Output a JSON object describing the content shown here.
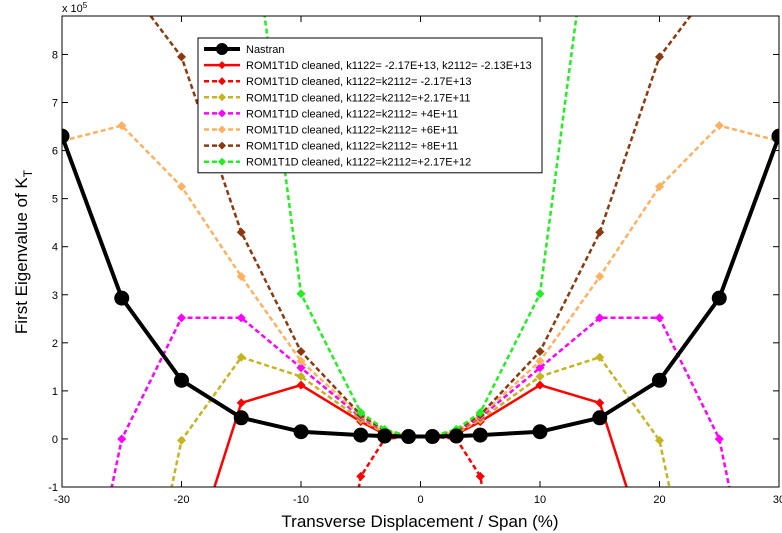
{
  "chart_data": {
    "type": "line",
    "title": "",
    "xlabel": "Transverse Displacement / Span (%)",
    "ylabel_main": "First Eigenvalue of K",
    "ylabel_sub": "T",
    "y_multiplier_base": "x 10",
    "y_multiplier_exp": "5",
    "xlim": [
      -30,
      30
    ],
    "ylim": [
      -1,
      8.8
    ],
    "xticks": [
      -30,
      -20,
      -10,
      0,
      10,
      20,
      30
    ],
    "yticks": [
      -1,
      0,
      1,
      2,
      3,
      4,
      5,
      6,
      7,
      8
    ],
    "legend_position": "top-center",
    "grid": false,
    "series": [
      {
        "name": "Nastran",
        "color": "#000000",
        "style": "solid",
        "width": 4,
        "marker": "circle",
        "x": [
          -30,
          -25,
          -20,
          -15,
          -10,
          -5,
          -3,
          -1,
          1,
          3,
          5,
          10,
          15,
          20,
          25,
          30
        ],
        "y": [
          6.3,
          2.93,
          1.22,
          0.44,
          0.15,
          0.08,
          0.06,
          0.05,
          0.05,
          0.06,
          0.08,
          0.15,
          0.44,
          1.22,
          2.93,
          6.3
        ]
      },
      {
        "name": "ROM1T1D cleaned, k1122= -2.17E+13, k2112= -2.13E+13",
        "color": "#ff0000",
        "style": "solid",
        "width": 2.5,
        "marker": "diamond",
        "x": [
          -17.5,
          -15,
          -10,
          -5,
          -3,
          -1,
          1,
          3,
          5,
          10,
          15,
          17.5
        ],
        "y": [
          -1.2,
          0.75,
          1.12,
          0.36,
          0.1,
          0.05,
          0.05,
          0.1,
          0.36,
          1.12,
          0.75,
          -1.2
        ]
      },
      {
        "name": "ROM1T1D cleaned, k1122=k2112= -2.17E+13",
        "color": "#ff0000",
        "style": "dashed",
        "width": 2.5,
        "marker": "diamond",
        "x": [
          -5.3,
          -5,
          -3,
          -1,
          1,
          3,
          5,
          5.3
        ],
        "y": [
          -1.2,
          -0.78,
          0.0,
          0.05,
          0.05,
          0.0,
          -0.78,
          -1.2
        ]
      },
      {
        "name": "ROM1T1D cleaned, k1122=k2112=+2.17E+11",
        "color": "#c6b41e",
        "style": "dashed",
        "width": 2.5,
        "marker": "diamond",
        "x": [
          -21,
          -20,
          -15,
          -10,
          -5,
          -3,
          -1,
          1,
          3,
          5,
          10,
          15,
          20,
          21
        ],
        "y": [
          -1.2,
          -0.03,
          1.7,
          1.3,
          0.4,
          0.12,
          0.05,
          0.05,
          0.12,
          0.4,
          1.3,
          1.7,
          -0.03,
          -1.2
        ]
      },
      {
        "name": "ROM1T1D cleaned, k1122=k2112= +4E+11",
        "color": "#ff00ff",
        "style": "dashed",
        "width": 2.5,
        "marker": "diamond",
        "x": [
          -26,
          -25,
          -20,
          -15,
          -10,
          -5,
          -3,
          -1,
          1,
          3,
          5,
          10,
          15,
          20,
          25,
          26
        ],
        "y": [
          -1.2,
          0.0,
          2.52,
          2.52,
          1.48,
          0.45,
          0.15,
          0.05,
          0.05,
          0.15,
          0.45,
          1.48,
          2.52,
          2.52,
          0.0,
          -1.2
        ]
      },
      {
        "name": "ROM1T1D cleaned, k1122=k2112= +6E+11",
        "color": "#ffb060",
        "style": "dashed",
        "width": 2.5,
        "marker": "diamond",
        "x": [
          -30,
          -25,
          -20,
          -15,
          -10,
          -5,
          -3,
          -1,
          1,
          3,
          5,
          10,
          15,
          20,
          25,
          30
        ],
        "y": [
          6.2,
          6.52,
          5.25,
          3.38,
          1.62,
          0.48,
          0.17,
          0.06,
          0.06,
          0.17,
          0.48,
          1.62,
          3.38,
          5.25,
          6.52,
          6.2
        ]
      },
      {
        "name": "ROM1T1D cleaned, k1122=k2112= +8E+11",
        "color": "#8b3a0f",
        "style": "dashed",
        "width": 2.5,
        "marker": "diamond",
        "x": [
          -25,
          -20,
          -15,
          -10,
          -5,
          -3,
          -1,
          1,
          3,
          5,
          10,
          15,
          20,
          25
        ],
        "y": [
          9.6,
          7.95,
          4.3,
          1.82,
          0.5,
          0.17,
          0.06,
          0.06,
          0.17,
          0.5,
          1.82,
          4.3,
          7.95,
          9.6
        ]
      },
      {
        "name": "ROM1T1D cleaned, k1122=k2112=+2.17E+12",
        "color": "#22ee22",
        "style": "dashed",
        "width": 2.5,
        "marker": "diamond",
        "x": [
          -15,
          -10,
          -5,
          -3,
          -1,
          1,
          3,
          5,
          10,
          15
        ],
        "y": [
          12.5,
          3.02,
          0.55,
          0.2,
          0.06,
          0.06,
          0.2,
          0.55,
          3.02,
          12.5
        ]
      }
    ]
  }
}
